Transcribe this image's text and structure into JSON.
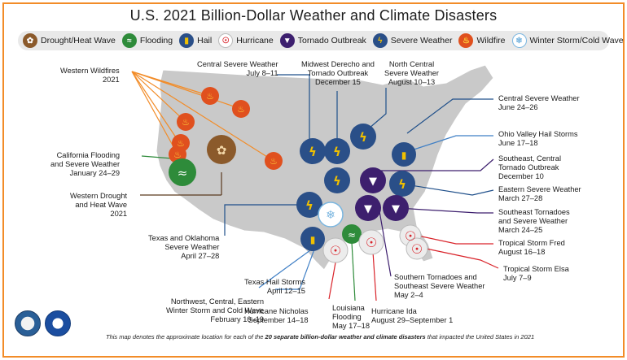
{
  "title": "U.S. 2021 Billion-Dollar Weather and Climate Disasters",
  "legend": [
    {
      "label": "Drought/Heat Wave",
      "icon": "drought-icon",
      "color": "#8b5a2b"
    },
    {
      "label": "Flooding",
      "icon": "flood-icon",
      "color": "#2e8b3a"
    },
    {
      "label": "Hail",
      "icon": "hail-icon",
      "color": "#f0a000"
    },
    {
      "label": "Hurricane",
      "icon": "hurricane-icon",
      "color": "#d9232a"
    },
    {
      "label": "Tornado Outbreak",
      "icon": "tornado-icon",
      "color": "#3d1f6e"
    },
    {
      "label": "Severe Weather",
      "icon": "severe-weather-icon",
      "color": "#2a4f88"
    },
    {
      "label": "Wildfire",
      "icon": "wildfire-icon",
      "color": "#e0501e"
    },
    {
      "label": "Winter Storm/Cold Wave",
      "icon": "winter-storm-icon",
      "color": "#7ab6e0"
    }
  ],
  "events": {
    "western_wildfires": {
      "line1": "Western Wildfires",
      "line2": "2021"
    },
    "ca_flooding": {
      "line1": "California Flooding",
      "line2": "and Severe Weather",
      "line3": "January 24–29"
    },
    "west_drought": {
      "line1": "Western Drought",
      "line2": "and Heat Wave",
      "line3": "2021"
    },
    "central_severe_jul": {
      "line1": "Central Severe Weather",
      "line2": "July 8–11"
    },
    "midwest_derecho": {
      "line1": "Midwest Derecho and",
      "line2": "Tornado Outbreak",
      "line3": "December 15"
    },
    "north_central": {
      "line1": "North Central",
      "line2": "Severe Weather",
      "line3": "August 10–13"
    },
    "central_severe_jun": {
      "line1": "Central Severe Weather",
      "line2": "June 24–26"
    },
    "ohio_hail": {
      "line1": "Ohio Valley Hail Storms",
      "line2": "June 17–18"
    },
    "se_central_tornado": {
      "line1": "Southeast, Central",
      "line2": "Tornado Outbreak",
      "line3": "December 10"
    },
    "eastern_severe": {
      "line1": "Eastern Severe Weather",
      "line2": "March 27–28"
    },
    "se_tornadoes_mar": {
      "line1": "Southeast Tornadoes",
      "line2": "and Severe Weather",
      "line3": "March 24–25"
    },
    "ts_fred": {
      "line1": "Tropical Storm Fred",
      "line2": "August 16–18"
    },
    "ts_elsa": {
      "line1": "Tropical Storm Elsa",
      "line2": "July 7–9"
    },
    "tx_ok_severe": {
      "line1": "Texas and Oklahoma",
      "line2": "Severe Weather",
      "line3": "April 27–28"
    },
    "tx_hail": {
      "line1": "Texas Hail Storms",
      "line2": "April 12–15"
    },
    "winter_storm": {
      "line1": "Northwest, Central, Eastern",
      "line2": "Winter Storm and Cold Wave",
      "line3": "February 10–19"
    },
    "hurricane_nicholas": {
      "line1": "Hurricane Nicholas",
      "line2": "September 14–18"
    },
    "la_flooding": {
      "line1": "Louisiana",
      "line2": "Flooding",
      "line3": "May 17–18"
    },
    "hurricane_ida": {
      "line1": "Hurricane Ida",
      "line2": "August 29–September 1"
    },
    "s_tornadoes_may": {
      "line1": "Southern Tornadoes and",
      "line2": "Southeast Severe Weather",
      "line3": "May 2–4"
    }
  },
  "footnote": {
    "part1": "This map denotes the approximate location for each of the ",
    "bold": "20 separate billion-dollar weather and climate disasters",
    "part2": " that impacted the United States in 2021"
  },
  "colors": {
    "frame": "#f28c28",
    "map_fill": "#c9c9c9",
    "map_edge": "#ffffff"
  }
}
